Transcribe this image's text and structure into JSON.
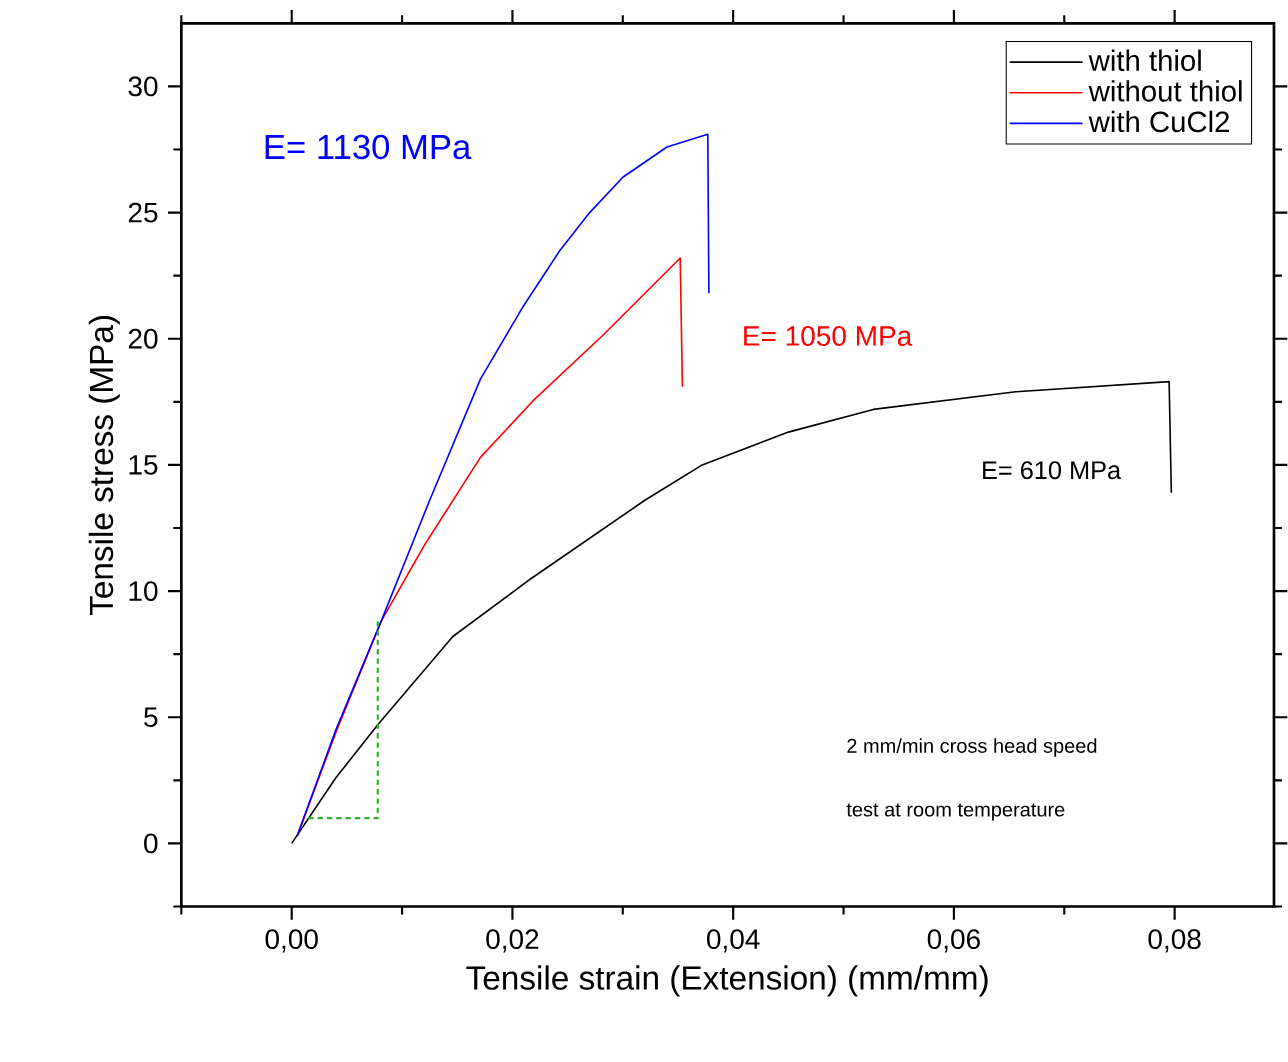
{
  "chart_data": {
    "type": "line",
    "xlabel": "Tensile strain (Extension) (mm/mm)",
    "ylabel": "Tensile stress (MPa)",
    "xlim": [
      -0.01,
      0.089
    ],
    "ylim": [
      -2.5,
      32.5
    ],
    "xticks": [
      {
        "value": -0.01,
        "label": null
      },
      {
        "value": 0,
        "label": "0,00"
      },
      {
        "value": 0.01,
        "label": null
      },
      {
        "value": 0.02,
        "label": "0,02"
      },
      {
        "value": 0.03,
        "label": null
      },
      {
        "value": 0.04,
        "label": "0,04"
      },
      {
        "value": 0.05,
        "label": null
      },
      {
        "value": 0.06,
        "label": "0,06"
      },
      {
        "value": 0.07,
        "label": null
      },
      {
        "value": 0.08,
        "label": "0,08"
      }
    ],
    "yticks": [
      {
        "value": -2.5,
        "label": null
      },
      0,
      {
        "value": 2.5,
        "label": null
      },
      5,
      {
        "value": 7.5,
        "label": null
      },
      10,
      {
        "value": 12.5,
        "label": null
      },
      15,
      {
        "value": 17.5,
        "label": null
      },
      20,
      {
        "value": 22.5,
        "label": null
      },
      25,
      {
        "value": 27.5,
        "label": null
      },
      30
    ],
    "legend": "top right",
    "marker": "none",
    "line_style": "solid",
    "series": [
      {
        "name": "with thiol",
        "color": "#000000",
        "x": [
          0,
          0.004,
          0.0078,
          0.0146,
          0.0217,
          0.032,
          0.0372,
          0.045,
          0.0527,
          0.0656,
          0.0795,
          0.0797
        ],
        "values": [
          0,
          2.6,
          4.7,
          8.2,
          10.5,
          13.6,
          15.0,
          16.3,
          17.2,
          17.9,
          18.3,
          13.9
        ]
      },
      {
        "name": "without thiol",
        "color": "#ff0000",
        "x": [
          0.0005,
          0.004,
          0.0081,
          0.012,
          0.0171,
          0.022,
          0.0281,
          0.0352,
          0.0354
        ],
        "values": [
          0.3,
          4.4,
          8.8,
          11.8,
          15.3,
          17.6,
          20.1,
          23.2,
          18.1
        ]
      },
      {
        "name": "with CuCl2",
        "color": "#0000ff",
        "x": [
          0.0005,
          0.004,
          0.0081,
          0.0125,
          0.0171,
          0.021,
          0.0243,
          0.027,
          0.03,
          0.034,
          0.0377,
          0.0378
        ],
        "values": [
          0.3,
          4.5,
          8.8,
          13.6,
          18.4,
          21.3,
          23.5,
          25.0,
          26.4,
          27.6,
          28.1,
          21.8
        ]
      },
      {
        "color": "#33aa33",
        "line_style": "dashed",
        "x": [
          0.0015,
          0.0078,
          0.0078
        ],
        "values": [
          1,
          1,
          8.8
        ]
      }
    ],
    "annotations": [
      "E= 610 MPa",
      "E= 1050 MPa",
      "E= 1130 MPa",
      "2 mm/min cross head speed",
      "test at room temperature"
    ]
  }
}
